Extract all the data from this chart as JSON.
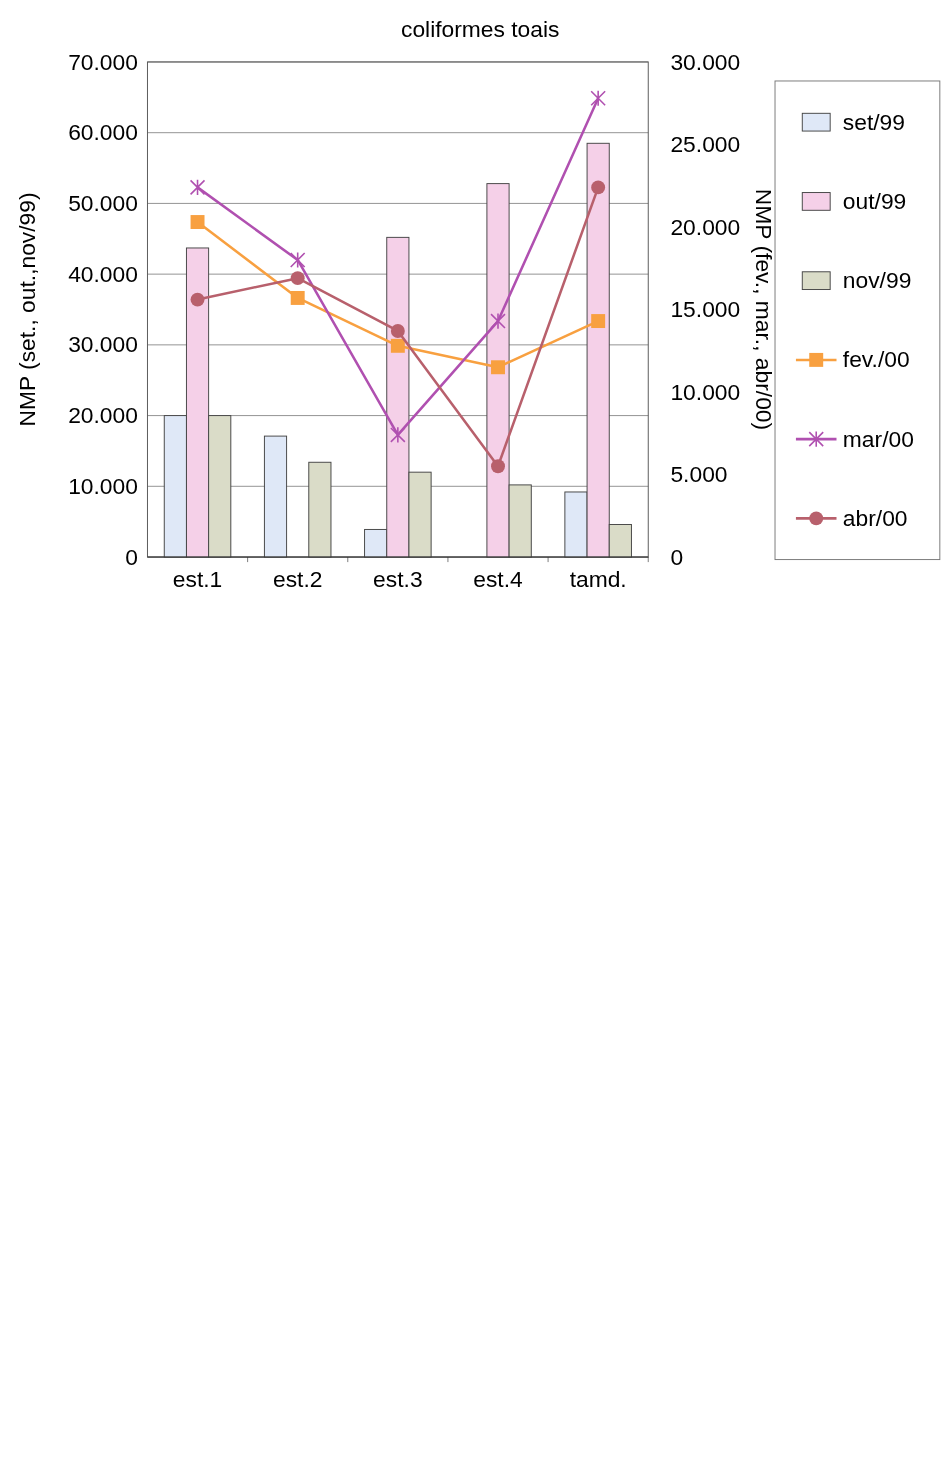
{
  "chart_data": {
    "type": "bar",
    "title": "coliformes toais",
    "ylabel": "NMP (set., out.,nov/99)",
    "y2label": "NMP (fev., mar., abr/00)",
    "categories": [
      "est.1",
      "est.2",
      "est.3",
      "est.4",
      "tamd."
    ],
    "series": [
      {
        "name": "set/99",
        "color": "#dfe8f7",
        "values": [
          20000,
          17100,
          3900,
          null,
          9200
        ]
      },
      {
        "name": "out/99",
        "color": "#f5d0e8",
        "values": [
          43700,
          null,
          45200,
          52800,
          58500
        ]
      },
      {
        "name": "nov/99",
        "color": "#dadcc8",
        "values": [
          20000,
          13400,
          12000,
          10200,
          4600
        ]
      },
      {
        "name": "fev./00",
        "type": "line",
        "axis": "y2",
        "marker": "square",
        "color": "#f8a040",
        "values": [
          20300,
          15700,
          12800,
          11500,
          14300
        ]
      },
      {
        "name": "mar/00",
        "type": "line",
        "axis": "y2",
        "marker": "cross",
        "color": "#b050b0",
        "values": [
          22400,
          18000,
          7400,
          14300,
          27800
        ]
      },
      {
        "name": "abr/00",
        "type": "line",
        "axis": "y2",
        "marker": "circle",
        "color": "#b8606c",
        "values": [
          15600,
          16900,
          13700,
          5500,
          22400
        ]
      }
    ],
    "ylim": [
      0,
      70000
    ],
    "yticks": [
      {
        "value": 0,
        "label": "0"
      },
      {
        "value": 10000,
        "label": "10.000"
      },
      {
        "value": 20000,
        "label": "20.000"
      },
      {
        "value": 30000,
        "label": "30.000"
      },
      {
        "value": 40000,
        "label": "40.000"
      },
      {
        "value": 50000,
        "label": "50.000"
      },
      {
        "value": 60000,
        "label": "60.000"
      },
      {
        "value": 70000,
        "label": "70.000"
      }
    ],
    "y2lim": [
      0,
      30000
    ],
    "y2ticks": [
      {
        "value": 0,
        "label": "0"
      },
      {
        "value": 5000,
        "label": "5.000"
      },
      {
        "value": 10000,
        "label": "10.000"
      },
      {
        "value": 15000,
        "label": "15.000"
      },
      {
        "value": 20000,
        "label": "20.000"
      },
      {
        "value": 25000,
        "label": "25.000"
      },
      {
        "value": 30000,
        "label": "30.000"
      }
    ],
    "grid": "y",
    "legend": "right"
  }
}
